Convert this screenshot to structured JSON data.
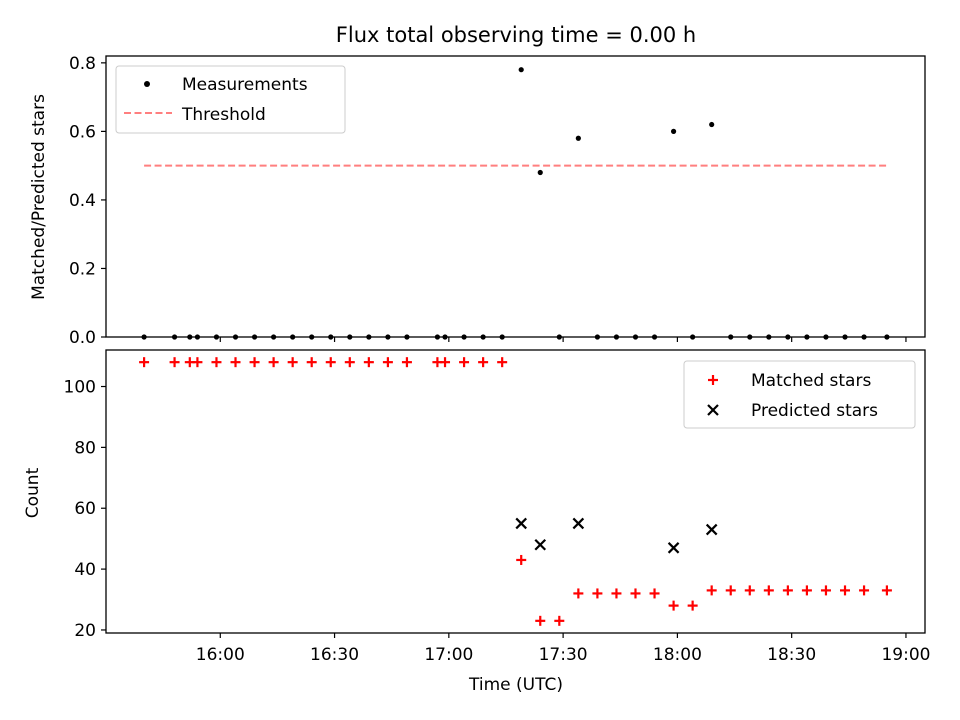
{
  "chart_data": [
    {
      "type": "scatter",
      "title": "Flux total observing time = 0.00 h",
      "ylabel": "Matched/Predicted stars",
      "xlabel": "",
      "ylim": [
        0,
        0.82
      ],
      "yticks": [
        0.0,
        0.2,
        0.4,
        0.6,
        0.8
      ],
      "ytick_labels": [
        "0.0",
        "0.2",
        "0.4",
        "0.6",
        "0.8"
      ],
      "legend": {
        "placement": "top-left",
        "entries": [
          "Measurements",
          "Threshold"
        ]
      },
      "series": [
        {
          "name": "Measurements",
          "marker": "dot",
          "color": "#000000",
          "points": [
            [
              "15:40",
              0
            ],
            [
              "15:48",
              0
            ],
            [
              "15:52",
              0
            ],
            [
              "15:54",
              0
            ],
            [
              "15:59",
              0
            ],
            [
              "16:04",
              0
            ],
            [
              "16:09",
              0
            ],
            [
              "16:14",
              0
            ],
            [
              "16:19",
              0
            ],
            [
              "16:24",
              0
            ],
            [
              "16:29",
              0
            ],
            [
              "16:34",
              0
            ],
            [
              "16:39",
              0
            ],
            [
              "16:44",
              0
            ],
            [
              "16:49",
              0
            ],
            [
              "16:57",
              0
            ],
            [
              "16:59",
              0
            ],
            [
              "17:04",
              0
            ],
            [
              "17:09",
              0
            ],
            [
              "17:14",
              0
            ],
            [
              "17:19",
              0.78
            ],
            [
              "17:24",
              0.48
            ],
            [
              "17:29",
              0
            ],
            [
              "17:34",
              0.58
            ],
            [
              "17:39",
              0
            ],
            [
              "17:44",
              0
            ],
            [
              "17:49",
              0
            ],
            [
              "17:54",
              0
            ],
            [
              "17:59",
              0.6
            ],
            [
              "18:04",
              0
            ],
            [
              "18:09",
              0.62
            ],
            [
              "18:14",
              0
            ],
            [
              "18:19",
              0
            ],
            [
              "18:24",
              0
            ],
            [
              "18:29",
              0
            ],
            [
              "18:34",
              0
            ],
            [
              "18:39",
              0
            ],
            [
              "18:44",
              0
            ],
            [
              "18:49",
              0
            ],
            [
              "18:55",
              0
            ]
          ]
        },
        {
          "name": "Threshold",
          "marker": "dashed-line",
          "color": "#ff7f7f",
          "points": [
            [
              "15:40",
              0.5
            ],
            [
              "18:55",
              0.5
            ]
          ]
        }
      ]
    },
    {
      "type": "scatter",
      "title": "",
      "ylabel": "Count",
      "xlabel": "Time (UTC)",
      "ylim": [
        19,
        112
      ],
      "xlim": [
        "15:30",
        "19:05"
      ],
      "yticks": [
        20,
        40,
        60,
        80,
        100
      ],
      "ytick_labels": [
        "20",
        "40",
        "60",
        "80",
        "100"
      ],
      "xticks": [
        "16:00",
        "16:30",
        "17:00",
        "17:30",
        "18:00",
        "18:30",
        "19:00"
      ],
      "legend": {
        "placement": "top-right",
        "entries": [
          "Matched stars",
          "Predicted stars"
        ]
      },
      "series": [
        {
          "name": "Matched stars",
          "marker": "plus",
          "color": "#ff0000",
          "points": [
            [
              "15:40",
              108
            ],
            [
              "15:48",
              108
            ],
            [
              "15:52",
              108
            ],
            [
              "15:54",
              108
            ],
            [
              "15:59",
              108
            ],
            [
              "16:04",
              108
            ],
            [
              "16:09",
              108
            ],
            [
              "16:14",
              108
            ],
            [
              "16:19",
              108
            ],
            [
              "16:24",
              108
            ],
            [
              "16:29",
              108
            ],
            [
              "16:34",
              108
            ],
            [
              "16:39",
              108
            ],
            [
              "16:44",
              108
            ],
            [
              "16:49",
              108
            ],
            [
              "16:57",
              108
            ],
            [
              "16:59",
              108
            ],
            [
              "17:04",
              108
            ],
            [
              "17:09",
              108
            ],
            [
              "17:14",
              108
            ],
            [
              "17:19",
              43
            ],
            [
              "17:24",
              23
            ],
            [
              "17:29",
              23
            ],
            [
              "17:34",
              32
            ],
            [
              "17:39",
              32
            ],
            [
              "17:44",
              32
            ],
            [
              "17:49",
              32
            ],
            [
              "17:54",
              32
            ],
            [
              "17:59",
              28
            ],
            [
              "18:04",
              28
            ],
            [
              "18:09",
              33
            ],
            [
              "18:14",
              33
            ],
            [
              "18:19",
              33
            ],
            [
              "18:24",
              33
            ],
            [
              "18:29",
              33
            ],
            [
              "18:34",
              33
            ],
            [
              "18:39",
              33
            ],
            [
              "18:44",
              33
            ],
            [
              "18:49",
              33
            ],
            [
              "18:55",
              33
            ]
          ]
        },
        {
          "name": "Predicted stars",
          "marker": "x",
          "color": "#000000",
          "points": [
            [
              "17:19",
              55
            ],
            [
              "17:24",
              48
            ],
            [
              "17:34",
              55
            ],
            [
              "17:59",
              47
            ],
            [
              "18:09",
              53
            ]
          ]
        }
      ]
    }
  ]
}
